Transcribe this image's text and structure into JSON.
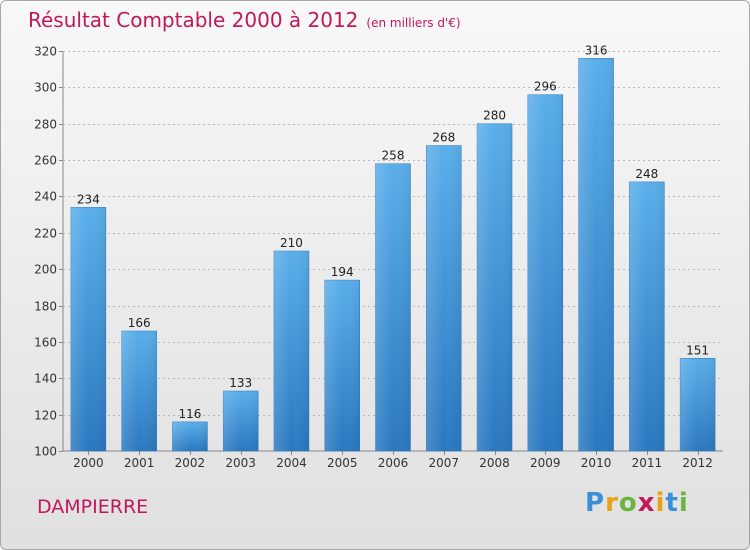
{
  "chart_data": {
    "type": "bar",
    "title": "Résultat Comptable 2000 à 2012",
    "subtitle": "(en milliers d'€)",
    "categories": [
      "2000",
      "2001",
      "2002",
      "2003",
      "2004",
      "2005",
      "2006",
      "2007",
      "2008",
      "2009",
      "2010",
      "2011",
      "2012"
    ],
    "values": [
      234,
      166,
      116,
      133,
      210,
      194,
      258,
      268,
      280,
      296,
      316,
      248,
      151
    ],
    "ylim": [
      100,
      320
    ],
    "yticks": [
      100,
      120,
      140,
      160,
      180,
      200,
      220,
      240,
      260,
      280,
      300,
      320
    ],
    "grid": true,
    "bar_color": "#3a8fd6"
  },
  "footer": {
    "commune": "DAMPIERRE",
    "logo": {
      "letters": [
        "P",
        "r",
        "o",
        "x",
        "i",
        "t",
        "i"
      ],
      "colors": [
        "#3a8fd6",
        "#e8a317",
        "#6cb33f",
        "#c0185a",
        "#e8a317",
        "#3a8fd6",
        "#6cb33f"
      ]
    }
  }
}
